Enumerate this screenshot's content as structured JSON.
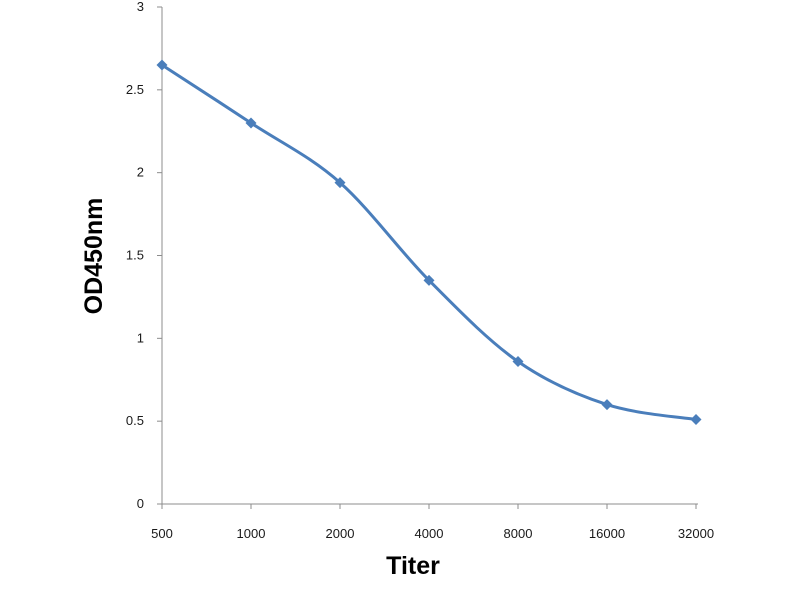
{
  "chart_data": {
    "type": "line",
    "title": "",
    "xlabel": "Titer",
    "ylabel": "OD450nm",
    "categories": [
      "500",
      "1000",
      "2000",
      "4000",
      "8000",
      "16000",
      "32000"
    ],
    "yticks": [
      "0",
      "0.5",
      "1",
      "1.5",
      "2",
      "2.5",
      "3"
    ],
    "ylim": [
      0,
      3
    ],
    "grid": false,
    "legend": "none",
    "smooth": true,
    "marker": "diamond",
    "series": [
      {
        "values": [
          2.65,
          2.3,
          1.94,
          1.35,
          0.86,
          0.6,
          0.51
        ],
        "color": "#4a7ebb"
      }
    ]
  }
}
